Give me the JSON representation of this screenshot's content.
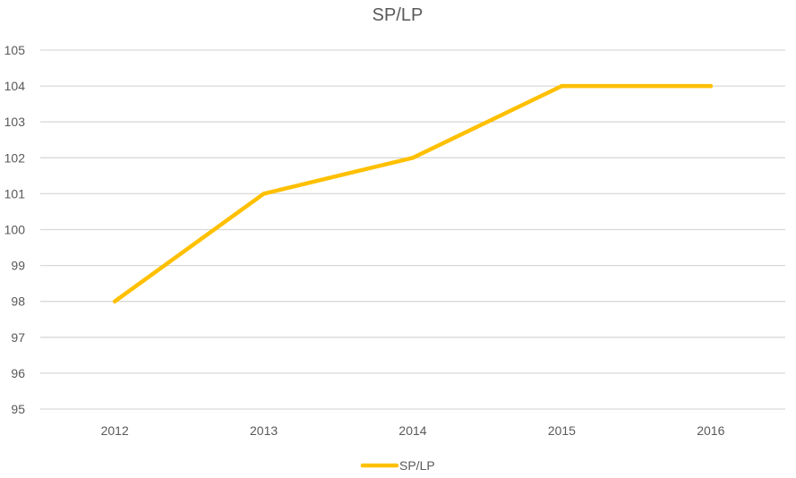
{
  "chart_data": {
    "type": "line",
    "title": "SP/LP",
    "xlabel": "",
    "ylabel": "",
    "categories": [
      "2012",
      "2013",
      "2014",
      "2015",
      "2016"
    ],
    "series": [
      {
        "name": "SP/LP",
        "values": [
          98,
          101,
          102,
          104,
          104
        ],
        "color": "#FFC000"
      }
    ],
    "ylim": [
      95,
      105
    ],
    "yticks": [
      95,
      96,
      97,
      98,
      99,
      100,
      101,
      102,
      103,
      104,
      105
    ],
    "grid": true,
    "gridColor": "#D9D9D9",
    "legend": "bottom"
  }
}
